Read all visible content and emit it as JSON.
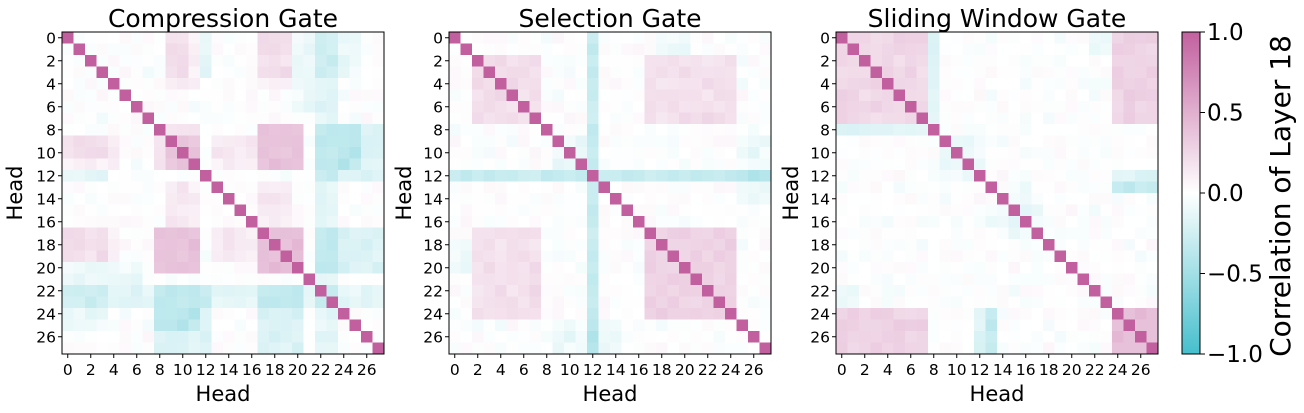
{
  "chart_data": [
    {
      "type": "heatmap",
      "title": "Compression Gate",
      "xlabel": "Head",
      "ylabel": "Head",
      "n": 28,
      "tick_labels": [
        "0",
        "2",
        "4",
        "6",
        "8",
        "10",
        "12",
        "14",
        "16",
        "18",
        "20",
        "22",
        "24",
        "26"
      ],
      "tick_step": 2,
      "blocks": [
        {
          "rows": [
            9,
            11
          ],
          "cols": [
            8,
            11
          ],
          "value": 0.35
        },
        {
          "rows": [
            8,
            11
          ],
          "cols": [
            17,
            20
          ],
          "value": 0.38
        },
        {
          "rows": [
            17,
            20
          ],
          "cols": [
            8,
            11
          ],
          "value": 0.38
        },
        {
          "rows": [
            17,
            20
          ],
          "cols": [
            17,
            20
          ],
          "value": 0.4
        },
        {
          "rows": [
            9,
            11
          ],
          "cols": [
            13,
            16
          ],
          "value": 0.25
        },
        {
          "rows": [
            17,
            19
          ],
          "cols": [
            13,
            16
          ],
          "value": 0.25
        },
        {
          "rows": [
            0,
            4
          ],
          "cols": [
            9,
            11
          ],
          "value": 0.2
        },
        {
          "rows": [
            0,
            4
          ],
          "cols": [
            17,
            19
          ],
          "value": 0.2
        },
        {
          "rows": [
            9,
            11
          ],
          "cols": [
            0,
            3
          ],
          "value": 0.2
        },
        {
          "rows": [
            17,
            19
          ],
          "cols": [
            0,
            3
          ],
          "value": 0.22
        },
        {
          "rows": [
            22,
            27
          ],
          "cols": [
            8,
            12
          ],
          "value": -0.35
        },
        {
          "rows": [
            22,
            27
          ],
          "cols": [
            17,
            20
          ],
          "value": -0.4
        },
        {
          "rows": [
            0,
            27
          ],
          "cols": [
            22,
            23
          ],
          "value": -0.3
        },
        {
          "rows": [
            8,
            11
          ],
          "cols": [
            24,
            25
          ],
          "value": -0.4
        },
        {
          "rows": [
            11,
            12
          ],
          "cols": [
            0,
            3
          ],
          "value": -0.25
        },
        {
          "rows": [
            20,
            21
          ],
          "cols": [
            0,
            6
          ],
          "value": -0.2
        },
        {
          "rows": [
            0,
            3
          ],
          "cols": [
            22,
            25
          ],
          "value": -0.22
        }
      ]
    },
    {
      "type": "heatmap",
      "title": "Selection Gate",
      "xlabel": "Head",
      "ylabel": "Head",
      "n": 28,
      "tick_labels": [
        "0",
        "2",
        "4",
        "6",
        "8",
        "10",
        "12",
        "14",
        "16",
        "18",
        "20",
        "22",
        "24",
        "26"
      ],
      "tick_step": 2,
      "blocks": [
        {
          "rows": [
            2,
            7
          ],
          "cols": [
            2,
            7
          ],
          "value": 0.22
        },
        {
          "rows": [
            17,
            24
          ],
          "cols": [
            17,
            24
          ],
          "value": 0.28
        },
        {
          "rows": [
            17,
            24
          ],
          "cols": [
            2,
            7
          ],
          "value": 0.2
        },
        {
          "rows": [
            2,
            7
          ],
          "cols": [
            17,
            24
          ],
          "value": 0.2
        },
        {
          "rows": [
            0,
            27
          ],
          "cols": [
            12,
            12
          ],
          "value": -0.3
        },
        {
          "rows": [
            12,
            12
          ],
          "cols": [
            0,
            27
          ],
          "value": -0.3
        },
        {
          "rows": [
            18,
            20
          ],
          "cols": [
            0,
            1
          ],
          "value": -0.2
        },
        {
          "rows": [
            25,
            27
          ],
          "cols": [
            9,
            14
          ],
          "value": -0.18
        },
        {
          "rows": [
            9,
            11
          ],
          "cols": [
            9,
            11
          ],
          "value": -0.12
        }
      ]
    },
    {
      "type": "heatmap",
      "title": "Sliding Window Gate",
      "xlabel": "Head",
      "ylabel": "Head",
      "n": 28,
      "tick_labels": [
        "0",
        "2",
        "4",
        "6",
        "8",
        "10",
        "12",
        "14",
        "16",
        "18",
        "20",
        "22",
        "24",
        "26"
      ],
      "tick_step": 2,
      "blocks": [
        {
          "rows": [
            0,
            7
          ],
          "cols": [
            0,
            7
          ],
          "value": 0.25
        },
        {
          "rows": [
            24,
            27
          ],
          "cols": [
            24,
            27
          ],
          "value": 0.4
        },
        {
          "rows": [
            24,
            27
          ],
          "cols": [
            0,
            7
          ],
          "value": 0.25
        },
        {
          "rows": [
            0,
            7
          ],
          "cols": [
            24,
            27
          ],
          "value": 0.3
        },
        {
          "rows": [
            8,
            8
          ],
          "cols": [
            0,
            7
          ],
          "value": -0.3
        },
        {
          "rows": [
            12,
            13
          ],
          "cols": [
            24,
            27
          ],
          "value": -0.35
        },
        {
          "rows": [
            24,
            27
          ],
          "cols": [
            13,
            13
          ],
          "value": -0.3
        },
        {
          "rows": [
            9,
            11
          ],
          "cols": [
            9,
            12
          ],
          "value": -0.12
        },
        {
          "rows": [
            22,
            23
          ],
          "cols": [
            0,
            1
          ],
          "value": -0.25
        },
        {
          "rows": [
            15,
            16
          ],
          "cols": [
            13,
            17
          ],
          "value": -0.15
        }
      ]
    }
  ],
  "colorbar": {
    "label": "Correlation of Layer 18",
    "vmin": -1.0,
    "vmax": 1.0,
    "tick_values": [
      1.0,
      0.5,
      0.0,
      -0.5,
      -1.0
    ],
    "tick_labels": [
      "1.0",
      "0.5",
      "0.0",
      "−0.5",
      "−1.0"
    ],
    "color_negative": "#46bfcd",
    "color_zero": "#ffffff",
    "color_positive": "#c2609f"
  }
}
